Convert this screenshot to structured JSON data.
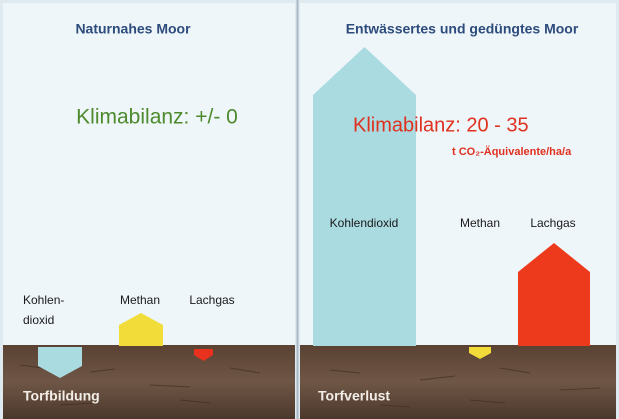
{
  "left": {
    "title": "Naturnahes Moor",
    "balance": "Klimabilanz: +/- 0",
    "labels": {
      "co2": [
        "Kohlen-",
        "dioxid"
      ],
      "methane": "Methan",
      "nitrous_oxide": "Lachgas"
    },
    "soil": "Torfbildung"
  },
  "right": {
    "title": "Entwässertes und gedüngtes Moor",
    "balance": "Klimabilanz: 20 - 35",
    "unit": "t CO₂-Äquivalente/ha/a",
    "labels": {
      "co2": "Kohlendioxid",
      "methane": "Methan",
      "nitrous_oxide": "Lachgas"
    },
    "soil": "Torfverlust"
  }
}
